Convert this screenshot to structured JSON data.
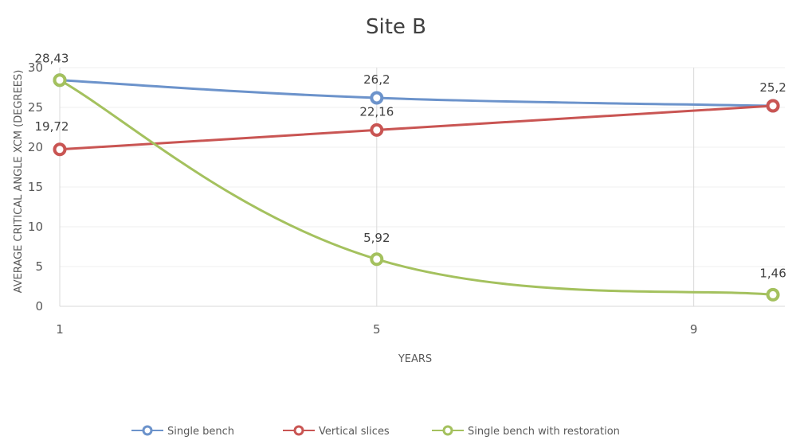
{
  "chart_data": {
    "type": "line",
    "title": "Site B",
    "xlabel": "YEARS",
    "ylabel": "AVERAGE CRITICAL ANGLE XCM (DEGREES)",
    "x": [
      1,
      5,
      10
    ],
    "x_ticks": [
      "1",
      "5",
      "9"
    ],
    "y_ticks": [
      "0",
      "5",
      "10",
      "15",
      "20",
      "25",
      "30"
    ],
    "ylim": [
      0,
      30
    ],
    "grid": "vertical",
    "legend_position": "bottom",
    "series": [
      {
        "name": "Single bench",
        "color": "#6c93cb",
        "values": [
          28.43,
          26.2,
          25.2
        ],
        "labels": [
          "28,43",
          "26,2",
          "25,2"
        ]
      },
      {
        "name": "Vertical slices",
        "color": "#c95553",
        "values": [
          19.72,
          22.16,
          25.2
        ],
        "labels": [
          "19,72",
          "22,16",
          ""
        ]
      },
      {
        "name": "Single bench with restoration",
        "color": "#a4c15e",
        "values": [
          28.43,
          5.92,
          1.46
        ],
        "labels": [
          "",
          "5,92",
          "1,46"
        ]
      }
    ]
  }
}
